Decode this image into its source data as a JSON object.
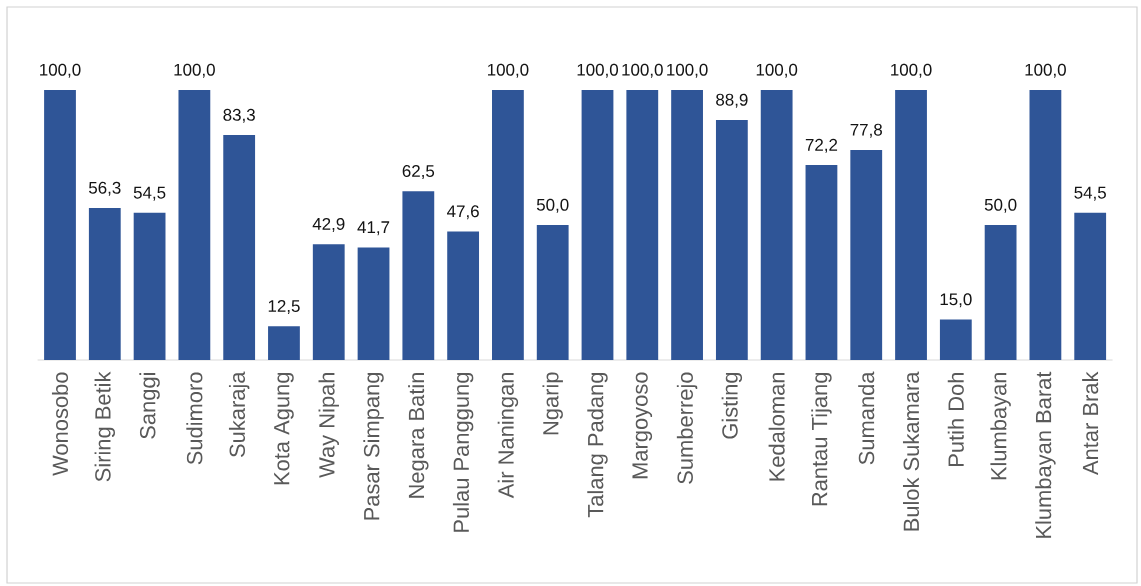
{
  "chart_data": {
    "type": "bar",
    "categories": [
      "Wonosobo",
      "Siring Betik",
      "Sanggi",
      "Sudimoro",
      "Sukaraja",
      "Kota Agung",
      "Way Nipah",
      "Pasar Simpang",
      "Negara Batin",
      "Pulau Panggung",
      "Air Naningan",
      "Ngarip",
      "Talang Padang",
      "Margoyoso",
      "Sumberrejo",
      "Gisting",
      "Kedaloman",
      "Rantau Tijang",
      "Sumanda",
      "Bulok Sukamara",
      "Putih Doh",
      "Klumbayan",
      "Klumbayan Barat",
      "Antar Brak"
    ],
    "values": [
      100.0,
      56.3,
      54.5,
      100.0,
      83.3,
      12.5,
      42.9,
      41.7,
      62.5,
      47.6,
      100.0,
      50.0,
      100.0,
      100.0,
      100.0,
      88.9,
      100.0,
      72.2,
      77.8,
      100.0,
      15.0,
      50.0,
      100.0,
      54.5
    ],
    "value_labels": [
      "100,0",
      "56,3",
      "54,5",
      "100,0",
      "83,3",
      "12,5",
      "42,9",
      "41,7",
      "62,5",
      "47,6",
      "100,0",
      "50,0",
      "100,0",
      "100,0",
      "100,0",
      "88,9",
      "100,0",
      "72,2",
      "77,8",
      "100,0",
      "15,0",
      "50,0",
      "100,0",
      "54,5"
    ],
    "color": "#2f5597"
  }
}
